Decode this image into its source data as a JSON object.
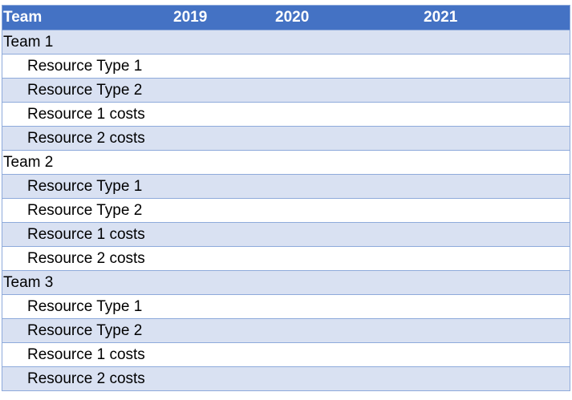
{
  "header": {
    "team": "Team",
    "y2019": "2019",
    "y2020": "2020",
    "y2021": "2021"
  },
  "rows": [
    {
      "label": "Team 1",
      "kind": "team"
    },
    {
      "label": "Resource Type 1",
      "kind": "item"
    },
    {
      "label": "Resource Type 2",
      "kind": "item"
    },
    {
      "label": "Resource 1 costs",
      "kind": "item"
    },
    {
      "label": "Resource 2 costs",
      "kind": "item"
    },
    {
      "label": "Team 2",
      "kind": "team"
    },
    {
      "label": "Resource Type 1",
      "kind": "item"
    },
    {
      "label": "Resource Type 2",
      "kind": "item"
    },
    {
      "label": "Resource 1 costs",
      "kind": "item"
    },
    {
      "label": "Resource 2 costs",
      "kind": "item"
    },
    {
      "label": "Team 3",
      "kind": "team"
    },
    {
      "label": "Resource Type 1",
      "kind": "item"
    },
    {
      "label": "Resource Type 2",
      "kind": "item"
    },
    {
      "label": "Resource 1 costs",
      "kind": "item"
    },
    {
      "label": "Resource 2 costs",
      "kind": "item"
    }
  ],
  "colors": {
    "header_bg": "#4472c4",
    "band_bg": "#d9e1f2",
    "border": "#8eaadb"
  }
}
